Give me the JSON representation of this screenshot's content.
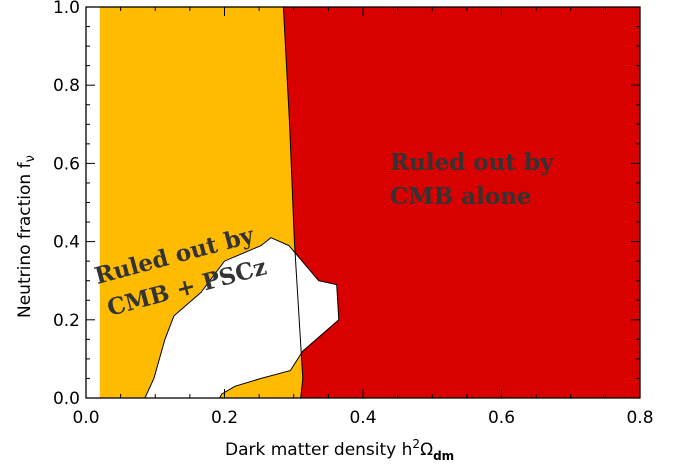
{
  "chart_data": {
    "type": "area",
    "xlabel": "Dark matter density h",
    "xlabel_sup": "2",
    "xlabel_omega": "Ω",
    "xlabel_sub": "dm",
    "ylabel": "Neutrino fraction f",
    "ylabel_sub": "ν",
    "xlim": [
      0.0,
      0.8
    ],
    "ylim": [
      0.0,
      1.0
    ],
    "x_ticks": [
      "0.0",
      "0.2",
      "0.4",
      "0.6",
      "0.8"
    ],
    "y_ticks": [
      "0.0",
      "0.2",
      "0.4",
      "0.6",
      "0.8",
      "1.0"
    ],
    "grid": false,
    "colors": {
      "cmb_alone": "#d90000",
      "cmb_pscz": "#ffbb00",
      "allowed": "#ffffff"
    },
    "regions": [
      {
        "name": "cmb-pscz-region",
        "label_lines": [
          "Ruled out by",
          "CMB + PSCz"
        ],
        "color": "#ffbb00",
        "boundary": [
          [
            0.02,
            0.0
          ],
          [
            0.02,
            1.0
          ],
          [
            0.8,
            1.0
          ],
          [
            0.8,
            0.0
          ]
        ]
      },
      {
        "name": "cmb-alone-region",
        "label_lines": [
          "Ruled out by",
          "CMB alone"
        ],
        "color": "#d90000",
        "boundary": [
          [
            0.281,
            1.0
          ],
          [
            0.8,
            1.0
          ],
          [
            0.8,
            0.0
          ],
          [
            0.31,
            0.0
          ],
          [
            0.313,
            0.05
          ],
          [
            0.301,
            0.4
          ],
          [
            0.294,
            0.7
          ],
          [
            0.285,
            1.0
          ]
        ]
      },
      {
        "name": "allowed-region",
        "label_lines": [],
        "color": "#ffffff",
        "boundary": [
          [
            0.085,
            0.0
          ],
          [
            0.098,
            0.05
          ],
          [
            0.114,
            0.15
          ],
          [
            0.127,
            0.21
          ],
          [
            0.166,
            0.27
          ],
          [
            0.2,
            0.35
          ],
          [
            0.253,
            0.39
          ],
          [
            0.267,
            0.41
          ],
          [
            0.293,
            0.39
          ],
          [
            0.336,
            0.3
          ],
          [
            0.362,
            0.29
          ],
          [
            0.365,
            0.2
          ],
          [
            0.313,
            0.12
          ],
          [
            0.295,
            0.07
          ],
          [
            0.253,
            0.05
          ],
          [
            0.215,
            0.03
          ],
          [
            0.196,
            0.01
          ],
          [
            0.193,
            0.0
          ]
        ]
      }
    ]
  }
}
